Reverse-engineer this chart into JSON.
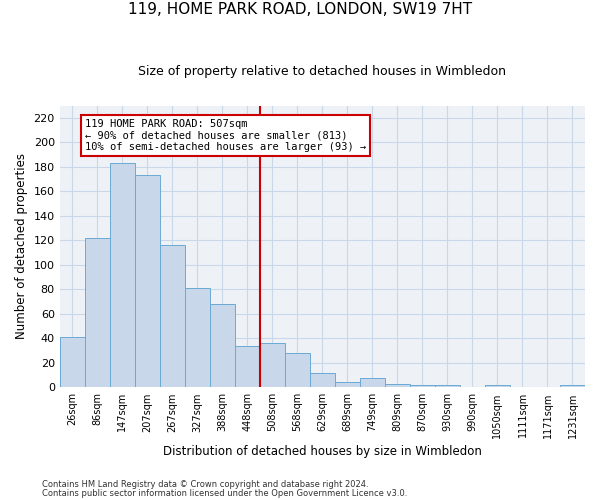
{
  "title": "119, HOME PARK ROAD, LONDON, SW19 7HT",
  "subtitle": "Size of property relative to detached houses in Wimbledon",
  "xlabel": "Distribution of detached houses by size in Wimbledon",
  "ylabel": "Number of detached properties",
  "categories": [
    "26sqm",
    "86sqm",
    "147sqm",
    "207sqm",
    "267sqm",
    "327sqm",
    "388sqm",
    "448sqm",
    "508sqm",
    "568sqm",
    "629sqm",
    "689sqm",
    "749sqm",
    "809sqm",
    "870sqm",
    "930sqm",
    "990sqm",
    "1050sqm",
    "1111sqm",
    "1171sqm",
    "1231sqm"
  ],
  "values": [
    41,
    122,
    183,
    173,
    116,
    81,
    68,
    34,
    36,
    28,
    12,
    4,
    8,
    3,
    2,
    2,
    0,
    2,
    0,
    0,
    2
  ],
  "bar_color": "#c8d8ea",
  "bar_edge_color": "#6aaad4",
  "vline_x_index": 8,
  "vline_color": "#cc0000",
  "annotation_text": "119 HOME PARK ROAD: 507sqm\n← 90% of detached houses are smaller (813)\n10% of semi-detached houses are larger (93) →",
  "annotation_box_color": "#cc0000",
  "ylim": [
    0,
    230
  ],
  "yticks": [
    0,
    20,
    40,
    60,
    80,
    100,
    120,
    140,
    160,
    180,
    200,
    220
  ],
  "grid_color": "#c8d8e8",
  "bg_color": "#eef2f7",
  "footer1": "Contains HM Land Registry data © Crown copyright and database right 2024.",
  "footer2": "Contains public sector information licensed under the Open Government Licence v3.0."
}
